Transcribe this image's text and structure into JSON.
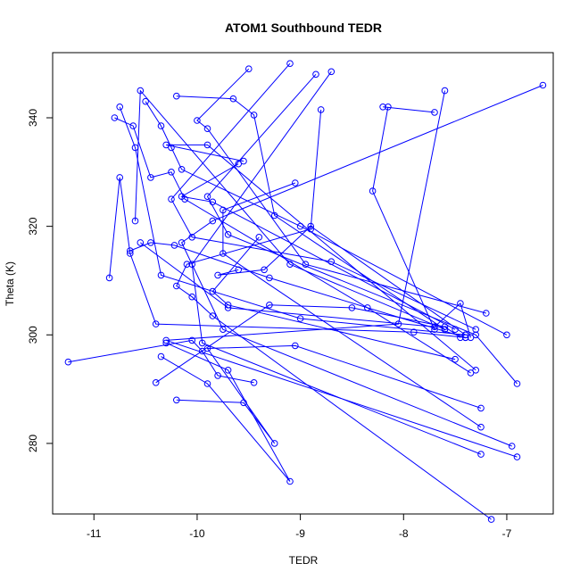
{
  "chart_data": {
    "type": "line",
    "title": "ATOM1 Southbound TEDR",
    "xlabel": "TEDR",
    "ylabel": "Theta (K)",
    "xlim": [
      -11.4,
      -6.55
    ],
    "ylim": [
      267,
      352
    ],
    "x_ticks": [
      -11,
      -10,
      -9,
      -8,
      -7
    ],
    "y_ticks": [
      280,
      300,
      320,
      340
    ],
    "x_tick_labels": [
      "-11",
      "-10",
      "-9",
      "-8",
      "-7"
    ],
    "y_tick_labels": [
      "280",
      "300",
      "320",
      "340"
    ],
    "marker": "open-circle",
    "grid": false,
    "colors": {
      "series": "#0000ff",
      "axis": "#000000"
    },
    "series": [
      {
        "points": [
          [
            -11.25,
            295.0
          ],
          [
            -10.05,
            299.0
          ],
          [
            -9.95,
            297.0
          ],
          [
            -9.8,
            292.5
          ],
          [
            -9.45,
            291.2
          ]
        ]
      },
      {
        "points": [
          [
            -10.4,
            291.2
          ],
          [
            -9.3,
            305.5
          ],
          [
            -8.5,
            305.0
          ],
          [
            -7.6,
            301.5
          ],
          [
            -7.45,
            299.5
          ]
        ]
      },
      {
        "points": [
          [
            -10.2,
            288.0
          ],
          [
            -9.55,
            287.5
          ],
          [
            -9.25,
            280.0
          ],
          [
            -9.9,
            297.5
          ],
          [
            -9.05,
            298.0
          ],
          [
            -7.25,
            286.5
          ]
        ]
      },
      {
        "points": [
          [
            -10.85,
            310.5
          ],
          [
            -10.75,
            329.0
          ],
          [
            -10.65,
            315.0
          ],
          [
            -10.4,
            302.0
          ],
          [
            -7.9,
            300.5
          ],
          [
            -7.4,
            299.5
          ]
        ]
      },
      {
        "points": [
          [
            -10.8,
            340.0
          ],
          [
            -10.62,
            338.5
          ],
          [
            -10.45,
            329.0
          ],
          [
            -10.25,
            330.0
          ],
          [
            -10.12,
            325.0
          ],
          [
            -8.35,
            305.0
          ],
          [
            -7.35,
            293.0
          ]
        ]
      },
      {
        "points": [
          [
            -10.55,
            317.0
          ],
          [
            -9.7,
            305.0
          ],
          [
            -7.7,
            301.5
          ],
          [
            -7.45,
            305.8
          ],
          [
            -7.35,
            299.5
          ]
        ]
      },
      {
        "points": [
          [
            -10.5,
            343.0
          ],
          [
            -10.35,
            338.5
          ],
          [
            -10.25,
            334.5
          ],
          [
            -10.15,
            330.5
          ],
          [
            -9.0,
            320.0
          ],
          [
            -7.0,
            300.0
          ]
        ]
      },
      {
        "points": [
          [
            -10.2,
            344.0
          ],
          [
            -9.65,
            343.5
          ],
          [
            -9.45,
            340.5
          ],
          [
            -9.25,
            322.0
          ],
          [
            -7.6,
            301.0
          ]
        ]
      },
      {
        "points": [
          [
            -9.5,
            349.0
          ],
          [
            -10.0,
            339.5
          ],
          [
            -9.9,
            338.0
          ],
          [
            -8.95,
            313.0
          ],
          [
            -7.2,
            304.0
          ]
        ]
      },
      {
        "points": [
          [
            -9.1,
            350.0
          ],
          [
            -10.25,
            325.0
          ],
          [
            -10.05,
            318.0
          ],
          [
            -8.7,
            313.5
          ],
          [
            -7.3,
            301.0
          ]
        ]
      },
      {
        "points": [
          [
            -8.7,
            348.5
          ],
          [
            -10.05,
            313.0
          ],
          [
            -9.95,
            298.5
          ],
          [
            -7.25,
            278.0
          ]
        ]
      },
      {
        "points": [
          [
            -8.8,
            341.5
          ],
          [
            -8.9,
            319.5
          ],
          [
            -10.1,
            313.0
          ],
          [
            -10.2,
            309.0
          ],
          [
            -10.05,
            307.0
          ],
          [
            -9.85,
            303.5
          ],
          [
            -7.15,
            266.0
          ]
        ]
      },
      {
        "points": [
          [
            -8.85,
            348.0
          ],
          [
            -9.9,
            325.5
          ],
          [
            -9.7,
            318.5
          ],
          [
            -7.3,
            300.0
          ],
          [
            -6.9,
            291.0
          ]
        ]
      },
      {
        "points": [
          [
            -6.65,
            346.0
          ],
          [
            -9.85,
            321.0
          ],
          [
            -10.15,
            317.0
          ],
          [
            -9.75,
            301.0
          ],
          [
            -6.95,
            279.5
          ]
        ]
      },
      {
        "points": [
          [
            -7.6,
            345.0
          ],
          [
            -8.05,
            302.0
          ],
          [
            -10.3,
            299.0
          ],
          [
            -6.9,
            277.5
          ]
        ]
      },
      {
        "points": [
          [
            -8.15,
            342.0
          ],
          [
            -8.3,
            326.5
          ],
          [
            -7.7,
            301.0
          ]
        ]
      },
      {
        "points": [
          [
            -7.7,
            341.0
          ],
          [
            -8.2,
            342.0
          ]
        ]
      },
      {
        "points": [
          [
            -9.6,
            331.5
          ],
          [
            -10.15,
            325.5
          ],
          [
            -9.85,
            324.5
          ],
          [
            -7.5,
            301.0
          ]
        ]
      },
      {
        "points": [
          [
            -9.55,
            332.0
          ],
          [
            -10.3,
            335.0
          ],
          [
            -9.9,
            335.0
          ],
          [
            -7.3,
            293.5
          ]
        ]
      },
      {
        "points": [
          [
            -9.05,
            328.0
          ],
          [
            -9.75,
            323.0
          ],
          [
            -9.75,
            315.0
          ],
          [
            -7.25,
            283.0
          ]
        ]
      },
      {
        "points": [
          [
            -9.4,
            318.0
          ],
          [
            -9.85,
            308.0
          ],
          [
            -9.7,
            305.5
          ],
          [
            -7.5,
            295.5
          ]
        ]
      },
      {
        "points": [
          [
            -10.3,
            298.5
          ],
          [
            -9.7,
            293.5
          ],
          [
            -9.1,
            273.0
          ],
          [
            -9.9,
            291.0
          ],
          [
            -10.35,
            296.0
          ]
        ]
      },
      {
        "points": [
          [
            -10.6,
            321.0
          ],
          [
            -10.55,
            345.0
          ],
          [
            -9.1,
            313.0
          ],
          [
            -7.6,
            301.0
          ]
        ]
      },
      {
        "points": [
          [
            -10.65,
            315.5
          ],
          [
            -10.45,
            317.0
          ],
          [
            -10.22,
            316.5
          ],
          [
            -9.3,
            310.5
          ],
          [
            -7.4,
            299.5
          ]
        ]
      },
      {
        "points": [
          [
            -10.75,
            342.0
          ],
          [
            -10.6,
            334.5
          ],
          [
            -10.35,
            311.0
          ],
          [
            -9.0,
            303.0
          ],
          [
            -7.4,
            300.0
          ]
        ]
      },
      {
        "points": [
          [
            -9.6,
            312.0
          ],
          [
            -9.8,
            311.0
          ],
          [
            -9.35,
            312.0
          ],
          [
            -8.9,
            320.0
          ],
          [
            -7.4,
            300.0
          ]
        ]
      }
    ]
  }
}
